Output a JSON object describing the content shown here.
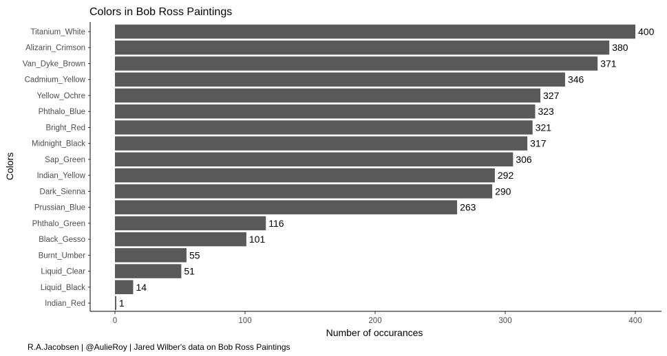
{
  "chart_data": {
    "type": "bar",
    "orientation": "horizontal",
    "title": "Colors in Bob Ross Paintings",
    "xlabel": "Number of occurances",
    "ylabel": "Colors",
    "caption": "R.A.Jacobsen | @AulieRoy | Jared Wilber's data on Bob Ross Paintings",
    "categories": [
      "Titanium_White",
      "Alizarin_Crimson",
      "Van_Dyke_Brown",
      "Cadmium_Yellow",
      "Yellow_Ochre",
      "Phthalo_Blue",
      "Bright_Red",
      "Midnight_Black",
      "Sap_Green",
      "Indian_Yellow",
      "Dark_Sienna",
      "Prussian_Blue",
      "Phthalo_Green",
      "Black_Gesso",
      "Burnt_Umber",
      "Liquid_Clear",
      "Liquid_Black",
      "Indian_Red"
    ],
    "values": [
      400,
      380,
      371,
      346,
      327,
      323,
      321,
      317,
      306,
      292,
      290,
      263,
      116,
      101,
      55,
      51,
      14,
      1
    ],
    "xlim": [
      0,
      400
    ],
    "xticks": [
      0,
      100,
      200,
      300,
      400
    ],
    "bar_color": "#595959",
    "grid": false,
    "legend": "none"
  }
}
